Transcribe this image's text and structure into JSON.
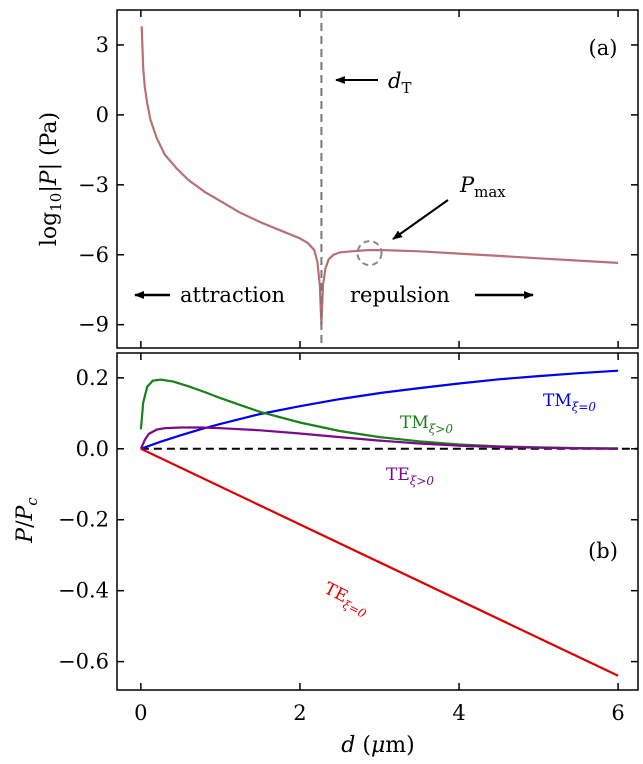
{
  "chart_data": [
    {
      "panel": "(a)",
      "type": "line",
      "xlabel": "",
      "ylabel": "log10|P| (Pa)",
      "xlim": [
        -0.3,
        6.25
      ],
      "ylim": [
        -10,
        4.5
      ],
      "yticks": [
        "3",
        "0",
        "−3",
        "−6",
        "−9"
      ],
      "ytick_values": [
        3,
        0,
        -3,
        -6,
        -9
      ],
      "xtick_values": [
        0,
        2,
        4,
        6
      ],
      "series": [
        {
          "color": "#b87078",
          "x": [
            0.01,
            0.03,
            0.05,
            0.08,
            0.12,
            0.2,
            0.3,
            0.45,
            0.6,
            0.8,
            1.0,
            1.25,
            1.5,
            1.75,
            2.0,
            2.1,
            2.18,
            2.22,
            2.25,
            2.27
          ],
          "y": [
            3.8,
            2.0,
            1.2,
            0.5,
            -0.2,
            -1.0,
            -1.7,
            -2.3,
            -2.8,
            -3.3,
            -3.7,
            -4.2,
            -4.6,
            -4.95,
            -5.3,
            -5.5,
            -5.8,
            -6.3,
            -7.3,
            -9.0
          ]
        },
        {
          "color": "#b87078",
          "x": [
            2.27,
            2.29,
            2.32,
            2.36,
            2.42,
            2.5,
            2.65,
            2.85,
            3.05,
            3.5,
            4.0,
            4.5,
            5.0,
            5.5,
            6.0
          ],
          "y": [
            -9.0,
            -7.3,
            -6.6,
            -6.2,
            -6.0,
            -5.9,
            -5.85,
            -5.8,
            -5.8,
            -5.85,
            -5.95,
            -6.05,
            -6.15,
            -6.25,
            -6.35
          ]
        }
      ],
      "annotations": {
        "panel_tag": "(a)",
        "threshold_label": "d_T",
        "threshold_x": 2.27,
        "pmax_label": "P_max",
        "pmax_x": 2.95,
        "pmax_y": -5.8,
        "attraction_label": "attraction",
        "repulsion_label": "repulsion"
      }
    },
    {
      "panel": "(b)",
      "type": "line",
      "xlabel": "d (μm)",
      "ylabel": "P/P_c",
      "xlim": [
        -0.3,
        6.25
      ],
      "ylim": [
        -0.68,
        0.27
      ],
      "xticks": [
        "0",
        "2",
        "4",
        "6"
      ],
      "xtick_values": [
        0,
        2,
        4,
        6
      ],
      "yticks": [
        "0.2",
        "0.0",
        "−0.2",
        "−0.4",
        "−0.6"
      ],
      "ytick_values": [
        0.2,
        0.0,
        -0.2,
        -0.4,
        -0.6
      ],
      "zero_line": true,
      "series": [
        {
          "name": "TM_{ξ=0}",
          "color": "#0000ee",
          "x": [
            0,
            0.25,
            0.5,
            0.75,
            1.0,
            1.5,
            2.0,
            2.5,
            3.0,
            3.5,
            4.0,
            4.5,
            5.0,
            5.5,
            6.0
          ],
          "y": [
            0.0,
            0.02,
            0.038,
            0.055,
            0.07,
            0.098,
            0.12,
            0.14,
            0.157,
            0.171,
            0.184,
            0.196,
            0.205,
            0.213,
            0.22
          ]
        },
        {
          "name": "TM_{ξ>0}",
          "color": "#1a801a",
          "x": [
            0.0,
            0.03,
            0.08,
            0.15,
            0.25,
            0.4,
            0.6,
            0.8,
            1.0,
            1.25,
            1.5,
            2.0,
            2.5,
            3.0,
            3.5,
            4.0,
            4.5,
            5.0,
            5.5,
            6.0
          ],
          "y": [
            0.055,
            0.13,
            0.175,
            0.192,
            0.195,
            0.19,
            0.176,
            0.16,
            0.143,
            0.123,
            0.104,
            0.074,
            0.05,
            0.033,
            0.021,
            0.012,
            0.007,
            0.004,
            0.002,
            0.001
          ]
        },
        {
          "name": "TE_{ξ>0}",
          "color": "#7a0a8a",
          "x": [
            0.0,
            0.05,
            0.1,
            0.2,
            0.3,
            0.5,
            0.75,
            1.0,
            1.5,
            2.0,
            2.5,
            3.0,
            3.5,
            4.0,
            4.5,
            5.0,
            5.5,
            6.0
          ],
          "y": [
            0.0,
            0.025,
            0.042,
            0.054,
            0.058,
            0.06,
            0.06,
            0.058,
            0.052,
            0.043,
            0.033,
            0.023,
            0.015,
            0.009,
            0.005,
            0.003,
            0.001,
            0.0
          ]
        },
        {
          "name": "TE_{ξ=0}",
          "color": "#dd0000",
          "x": [
            0,
            6
          ],
          "y": [
            0.0,
            -0.64
          ]
        }
      ],
      "annotations": {
        "panel_tag": "(b)"
      }
    }
  ]
}
